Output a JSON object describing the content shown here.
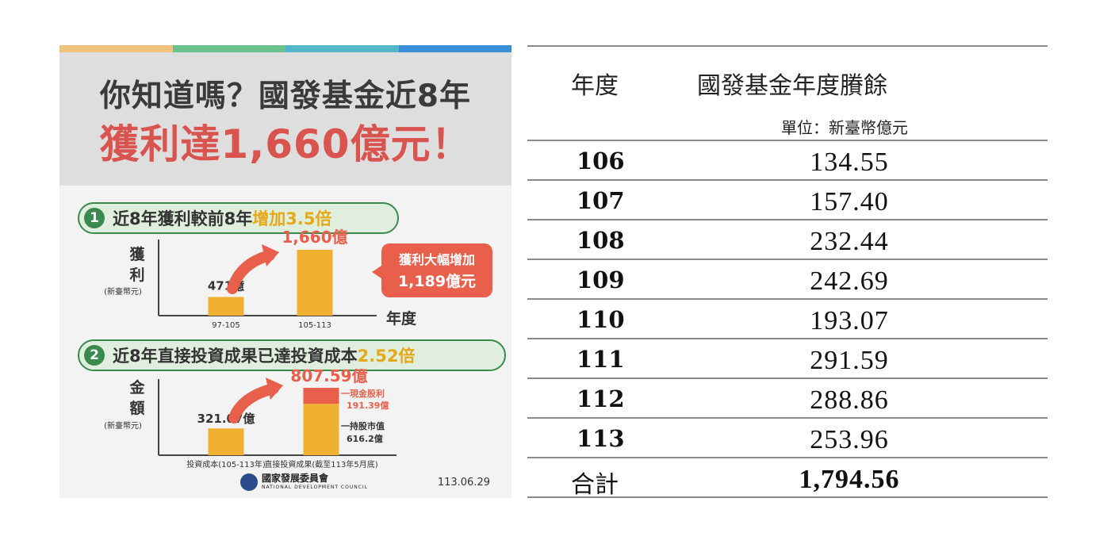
{
  "infographic": {
    "stripe_colors": [
      "#f1c27d",
      "#6cc28f",
      "#54b6c9",
      "#3b8fd9"
    ],
    "title_line1": "你知道嗎？國發基金近8年",
    "title_line2": "獲利達1,660億元！",
    "section1": {
      "number": "1",
      "text": "近8年獲利較前8年",
      "highlight": "增加3.5倍"
    },
    "section2": {
      "number": "2",
      "text": "近8年直接投資成果已達投資成本",
      "highlight": "2.52倍"
    },
    "logo_cn": "國家發展委員會",
    "logo_en": "NATIONAL DEVELOPMENT COUNCIL",
    "date": "113.06.29"
  },
  "chart_data": [
    {
      "type": "bar",
      "ylabel_chars": [
        "獲",
        "利"
      ],
      "yunit": "(新臺幣元)",
      "xlabel": "年度",
      "categories": [
        "97-105",
        "105-113"
      ],
      "values": [
        471,
        1660
      ],
      "value_labels": [
        "471億",
        "1,660億"
      ],
      "callout_line1": "獲利大幅增加",
      "callout_line2": "1,189億元",
      "colors": {
        "bar": "#f0b132",
        "accent": "#e8604c"
      }
    },
    {
      "type": "bar",
      "ylabel_chars": [
        "金",
        "額"
      ],
      "yunit": "(新臺幣元)",
      "categories": [
        "投資成本(105-113年)",
        "直接投資成果(截至113年5月底)"
      ],
      "series": [
        {
          "name": "持股市值",
          "values": [
            321.07,
            616.2
          ]
        },
        {
          "name": "現金股利",
          "values": [
            0,
            191.39
          ]
        }
      ],
      "value_labels": [
        "321.07億",
        "807.59億"
      ],
      "annotation_cash_name": "一現金股利",
      "annotation_cash_value": "191.39億",
      "annotation_hold_name": "一持股市值",
      "annotation_hold_value": "616.2億",
      "colors": {
        "bar": "#f0b132",
        "accent": "#e8604c"
      }
    },
    {
      "type": "table",
      "headers": [
        "年度",
        "國發基金年度賸餘"
      ],
      "unit": "單位：新臺幣億元",
      "rows": [
        {
          "year": "106",
          "value": "134.55"
        },
        {
          "year": "107",
          "value": "157.40"
        },
        {
          "year": "108",
          "value": "232.44"
        },
        {
          "year": "109",
          "value": "242.69"
        },
        {
          "year": "110",
          "value": "193.07"
        },
        {
          "year": "111",
          "value": "291.59"
        },
        {
          "year": "112",
          "value": "288.86"
        },
        {
          "year": "113",
          "value": "253.96"
        }
      ],
      "total": {
        "label": "合計",
        "value": "1,794.56"
      }
    }
  ]
}
